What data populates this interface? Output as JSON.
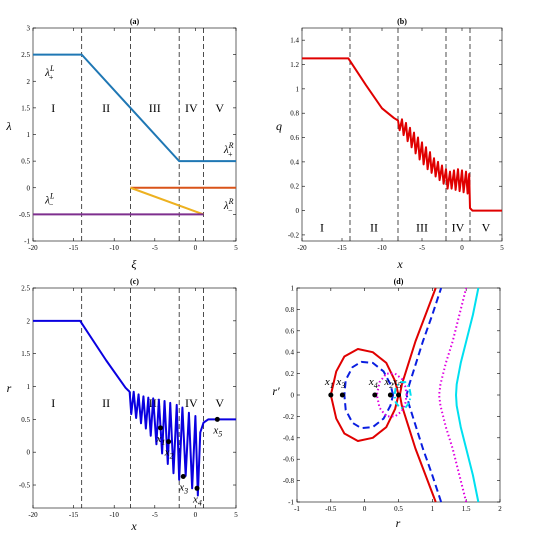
{
  "chart_data": [
    {
      "id": "a",
      "type": "line",
      "title": "(a)",
      "xlabel": "ξ",
      "ylabel": "λ",
      "xlim": [
        -20,
        5
      ],
      "ylim": [
        -1,
        3
      ],
      "xticks": [
        -20,
        -15,
        -10,
        -5,
        0,
        5
      ],
      "yticks": [
        -1,
        -0.5,
        0,
        0.5,
        1,
        1.5,
        2,
        2.5,
        3
      ],
      "vlines": [
        -14,
        -8,
        -2,
        1
      ],
      "regions": [
        "I",
        "II",
        "III",
        "IV",
        "V"
      ],
      "region_x": [
        -17.5,
        -11,
        -5,
        -0.5,
        3
      ],
      "region_y": 1.5,
      "labels": [
        {
          "base": "λ",
          "sup": "L",
          "sub": "+",
          "x": -18.5,
          "y": 2.1
        },
        {
          "base": "λ",
          "sup": "R",
          "sub": "+",
          "x": 3.5,
          "y": 0.65
        },
        {
          "base": "λ",
          "sup": "L",
          "sub": "−",
          "x": -18.5,
          "y": -0.3
        },
        {
          "base": "λ",
          "sup": "R",
          "sub": "−",
          "x": 3.5,
          "y": -0.4
        }
      ],
      "series": [
        {
          "color": "#1f77b4",
          "x": [
            -20,
            -14,
            -2,
            5
          ],
          "y": [
            2.5,
            2.5,
            0.5,
            0.5
          ]
        },
        {
          "color": "#d95319",
          "x": [
            -8,
            5
          ],
          "y": [
            0,
            0
          ]
        },
        {
          "color": "#edb120",
          "x": [
            -8,
            1
          ],
          "y": [
            0,
            -0.5
          ]
        },
        {
          "color": "#7e2f8e",
          "x": [
            -20,
            1
          ],
          "y": [
            -0.5,
            -0.5
          ]
        }
      ]
    },
    {
      "id": "b",
      "type": "line",
      "title": "(b)",
      "xlabel": "x",
      "ylabel": "q",
      "xlim": [
        -20,
        5
      ],
      "ylim": [
        -0.25,
        1.5
      ],
      "xticks": [
        -20,
        -15,
        -10,
        -5,
        0,
        5
      ],
      "yticks": [
        -0.2,
        0,
        0.2,
        0.4,
        0.6,
        0.8,
        1,
        1.2,
        1.4
      ],
      "vlines": [
        -14,
        -8,
        -2,
        1
      ],
      "regions": [
        "I",
        "II",
        "III",
        "IV",
        "V"
      ],
      "region_x": [
        -17.5,
        -11,
        -5,
        -0.5,
        3
      ],
      "region_y": -0.14,
      "series": [
        {
          "color": "#e00000",
          "x": [
            -20,
            -14.2,
            -12,
            -10,
            -8.5,
            -8.0,
            -7.8,
            -7.5,
            -7.3,
            -7.0,
            -6.8,
            -6.5,
            -6.3,
            -6.0,
            -5.8,
            -5.5,
            -5.3,
            -5.0,
            -4.8,
            -4.5,
            -4.3,
            -4.0,
            -3.8,
            -3.5,
            -3.3,
            -3.0,
            -2.8,
            -2.5,
            -2.3,
            -2.0,
            -1.8,
            -1.5,
            -1.3,
            -1.0,
            -0.8,
            -0.5,
            -0.3,
            0.0,
            0.2,
            0.5,
            0.7,
            0.9,
            1.0,
            1.3,
            5
          ],
          "y": [
            1.25,
            1.25,
            1.03,
            0.84,
            0.76,
            0.74,
            0.66,
            0.75,
            0.62,
            0.72,
            0.57,
            0.68,
            0.52,
            0.64,
            0.47,
            0.6,
            0.42,
            0.56,
            0.38,
            0.52,
            0.34,
            0.48,
            0.31,
            0.43,
            0.28,
            0.4,
            0.25,
            0.37,
            0.22,
            0.34,
            0.18,
            0.32,
            0.18,
            0.33,
            0.17,
            0.34,
            0.16,
            0.33,
            0.15,
            0.32,
            0.14,
            0.3,
            0.02,
            0.0,
            0.0
          ]
        }
      ]
    },
    {
      "id": "c",
      "type": "line",
      "title": "(c)",
      "xlabel": "x",
      "ylabel": "r",
      "xlim": [
        -20,
        5
      ],
      "ylim": [
        -0.85,
        2.5
      ],
      "xticks": [
        -20,
        -15,
        -10,
        -5,
        0,
        5
      ],
      "yticks": [
        -0.5,
        0,
        0.5,
        1,
        1.5,
        2,
        2.5
      ],
      "vlines": [
        -14,
        -8,
        -2,
        1
      ],
      "regions": [
        "I",
        "II",
        "III",
        "IV",
        "V"
      ],
      "region_x": [
        -17.5,
        -11,
        -5,
        -0.5,
        3
      ],
      "region_y": 0.75,
      "series": [
        {
          "color": "#0a00e0",
          "x": [
            -20,
            -14.2,
            -11,
            -8.6,
            -8.1,
            -7.9,
            -7.6,
            -7.3,
            -7.0,
            -6.7,
            -6.4,
            -6.1,
            -5.8,
            -5.5,
            -5.2,
            -4.8,
            -4.5,
            -4.1,
            -3.8,
            -3.4,
            -3.1,
            -2.7,
            -2.3,
            -2.0,
            -1.6,
            -1.2,
            -0.8,
            -0.4,
            0.0,
            0.3,
            0.6,
            1.0,
            1.6,
            5
          ],
          "y": [
            2.0,
            2.0,
            1.4,
            0.98,
            0.92,
            0.58,
            0.92,
            0.52,
            0.88,
            0.44,
            0.85,
            0.36,
            0.83,
            0.25,
            0.82,
            0.12,
            0.8,
            -0.02,
            0.78,
            -0.18,
            0.75,
            -0.32,
            0.72,
            -0.42,
            0.68,
            -0.36,
            0.6,
            -0.55,
            0.55,
            -0.66,
            0.3,
            0.45,
            0.5,
            0.5
          ]
        }
      ],
      "points": [
        {
          "label": "x",
          "sub": "1",
          "x": -4.3,
          "y": 0.37
        },
        {
          "label": "x",
          "sub": "2",
          "x": -3.3,
          "y": 0.16
        },
        {
          "label": "x",
          "sub": "3",
          "x": -1.5,
          "y": -0.37
        },
        {
          "label": "x",
          "sub": "4",
          "x": 0.2,
          "y": -0.55
        },
        {
          "label": "x",
          "sub": "5",
          "x": 2.7,
          "y": 0.5
        }
      ]
    },
    {
      "id": "d",
      "type": "line",
      "title": "(d)",
      "xlabel": "r",
      "ylabel": "r′",
      "xlim": [
        -1,
        2
      ],
      "ylim": [
        -1,
        1
      ],
      "xticks": [
        -1,
        -0.5,
        0,
        0.5,
        1,
        1.5,
        2
      ],
      "yticks": [
        -1,
        -0.8,
        -0.6,
        -0.4,
        -0.2,
        0,
        0.2,
        0.4,
        0.6,
        0.8,
        1
      ],
      "series": [
        {
          "color": "#e00000",
          "style": "solid",
          "x": [
            1.05,
            0.9,
            0.75,
            0.65,
            0.55,
            0.52,
            0.55,
            0.65,
            0.75,
            0.9,
            1.05
          ],
          "y": [
            -1,
            -0.75,
            -0.5,
            -0.3,
            -0.1,
            0,
            0.1,
            0.3,
            0.5,
            0.75,
            1
          ]
        },
        {
          "color": "#e00000",
          "style": "solid",
          "closed": true,
          "x": [
            0.5,
            0.45,
            0.32,
            0.12,
            -0.1,
            -0.3,
            -0.42,
            -0.5,
            -0.42,
            -0.3,
            -0.1,
            0.12,
            0.32,
            0.45,
            0.5
          ],
          "y": [
            0,
            0.13,
            0.3,
            0.4,
            0.43,
            0.36,
            0.22,
            0,
            -0.22,
            -0.36,
            -0.43,
            -0.4,
            -0.3,
            -0.13,
            0
          ]
        },
        {
          "color": "#0a1ee0",
          "style": "dash",
          "x": [
            1.13,
            1.0,
            0.86,
            0.76,
            0.66,
            0.62,
            0.66,
            0.76,
            0.86,
            1.0,
            1.13
          ],
          "y": [
            -1,
            -0.75,
            -0.5,
            -0.3,
            -0.1,
            0,
            0.1,
            0.3,
            0.5,
            0.75,
            1
          ]
        },
        {
          "color": "#0a1ee0",
          "style": "dash",
          "closed": true,
          "x": [
            0.42,
            0.38,
            0.28,
            0.12,
            -0.05,
            -0.18,
            -0.28,
            -0.3,
            -0.28,
            -0.18,
            -0.05,
            0.12,
            0.28,
            0.38,
            0.42
          ],
          "y": [
            0,
            0.1,
            0.22,
            0.3,
            0.31,
            0.26,
            0.14,
            0,
            -0.14,
            -0.26,
            -0.31,
            -0.3,
            -0.22,
            -0.1,
            0
          ]
        },
        {
          "color": "#e000e0",
          "style": "dot",
          "x": [
            1.5,
            1.4,
            1.3,
            1.2,
            1.12,
            1.1,
            1.12,
            1.2,
            1.3,
            1.4,
            1.5
          ],
          "y": [
            -1,
            -0.75,
            -0.5,
            -0.3,
            -0.1,
            0,
            0.1,
            0.3,
            0.5,
            0.75,
            1
          ]
        },
        {
          "color": "#e000e0",
          "style": "dot",
          "closed": true,
          "x": [
            0.62,
            0.6,
            0.55,
            0.45,
            0.32,
            0.22,
            0.18,
            0.22,
            0.32,
            0.45,
            0.55,
            0.6,
            0.62
          ],
          "y": [
            0,
            0.08,
            0.15,
            0.2,
            0.2,
            0.12,
            0,
            -0.12,
            -0.2,
            -0.2,
            -0.15,
            -0.08,
            0
          ]
        },
        {
          "color": "#00e0f0",
          "style": "dashdot",
          "closed": true,
          "x": [
            0.68,
            0.66,
            0.6,
            0.52,
            0.46,
            0.44,
            0.46,
            0.52,
            0.6,
            0.66,
            0.68
          ],
          "y": [
            0,
            0.07,
            0.12,
            0.12,
            0.07,
            0,
            -0.07,
            -0.12,
            -0.12,
            -0.07,
            0
          ]
        },
        {
          "color": "#00e0f0",
          "style": "solid",
          "x": [
            1.68,
            1.6,
            1.5,
            1.42,
            1.36,
            1.35,
            1.36,
            1.42,
            1.5,
            1.6,
            1.68
          ],
          "y": [
            -1,
            -0.75,
            -0.5,
            -0.3,
            -0.1,
            0,
            0.1,
            0.3,
            0.5,
            0.75,
            1
          ]
        }
      ],
      "points": [
        {
          "label": "x",
          "sub": "1",
          "x": -0.5,
          "y": 0
        },
        {
          "label": "x",
          "sub": "3",
          "x": -0.33,
          "y": 0
        },
        {
          "label": "x",
          "sub": "4",
          "x": 0.15,
          "y": 0
        },
        {
          "label": "x",
          "sub": "2",
          "x": 0.38,
          "y": 0
        },
        {
          "label": "x",
          "sub": "5",
          "x": 0.5,
          "y": 0
        }
      ]
    }
  ]
}
